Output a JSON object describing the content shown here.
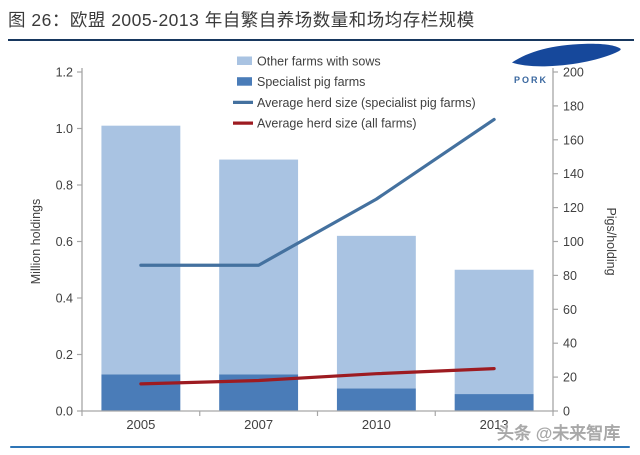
{
  "header": {
    "title": "图 26：欧盟 2005-2013 年自繁自养场数量和场均存栏规模"
  },
  "logo": {
    "text": "PORK"
  },
  "watermark": {
    "text": "头条 @未来智库"
  },
  "colors": {
    "title_underline": "#17375e",
    "bottom_divider": "#2e75b6",
    "logo_blue": "#16489b",
    "logo_text": "#39679f",
    "watermark_gray": "#a8a8a8",
    "axis_line": "#a6a6a6",
    "tick_text": "#404040",
    "legend_text": "#404040"
  },
  "chart_data": {
    "type": "bar",
    "stacked": true,
    "grid": false,
    "legend_position": "top-center-inside",
    "categories": [
      "2005",
      "2007",
      "2010",
      "2013"
    ],
    "bar_series": [
      {
        "name": "Specialist pig farms",
        "color": "#4a7cb8",
        "stack_order": "bottom",
        "axis": "left",
        "values": [
          0.13,
          0.13,
          0.08,
          0.06
        ]
      },
      {
        "name": "Other farms with sows",
        "color": "#a9c3e2",
        "stack_order": "top",
        "axis": "left",
        "values": [
          0.88,
          0.76,
          0.54,
          0.44
        ]
      }
    ],
    "bar_totals": [
      1.01,
      0.89,
      0.62,
      0.5
    ],
    "line_series": [
      {
        "name": "Average herd size (specialist pig farms)",
        "color": "#44719f",
        "axis": "right",
        "values": [
          86,
          86,
          125,
          172
        ]
      },
      {
        "name": "Average herd size (all farms)",
        "color": "#9d1b21",
        "axis": "right",
        "values": [
          16,
          18,
          22,
          25
        ]
      }
    ],
    "left_axis": {
      "label": "Million holdings",
      "min": 0,
      "max": 1.2,
      "step": 0.2,
      "ticks": [
        "0.0",
        "0.2",
        "0.4",
        "0.6",
        "0.8",
        "1.0",
        "1.2"
      ]
    },
    "right_axis": {
      "label": "Pigs/holding",
      "min": 0,
      "max": 200,
      "step": 20,
      "ticks": [
        "0",
        "20",
        "40",
        "60",
        "80",
        "100",
        "120",
        "140",
        "160",
        "180",
        "200"
      ]
    },
    "legend_items": [
      {
        "label": "Other farms with sows",
        "swatch": "square",
        "color": "#a9c3e2"
      },
      {
        "label": "Specialist pig farms",
        "swatch": "square",
        "color": "#4a7cb8"
      },
      {
        "label": "Average herd size (specialist pig farms)",
        "swatch": "line",
        "color": "#44719f"
      },
      {
        "label": "Average herd size (all farms)",
        "swatch": "line",
        "color": "#9d1b21"
      }
    ]
  }
}
